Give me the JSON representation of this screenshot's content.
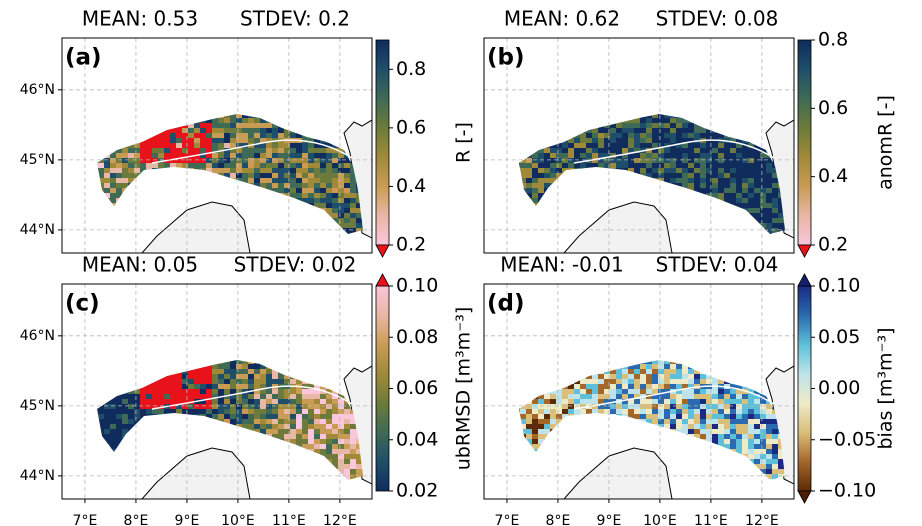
{
  "map": {
    "xlim": [
      6.55,
      12.63
    ],
    "ylim": [
      43.67,
      46.74
    ],
    "xticks": [
      {
        "value": 7,
        "label": "7°E"
      },
      {
        "value": 8,
        "label": "8°E"
      },
      {
        "value": 9,
        "label": "9°E"
      },
      {
        "value": 10,
        "label": "10°E"
      },
      {
        "value": 11,
        "label": "11°E"
      },
      {
        "value": 12,
        "label": "12°E"
      }
    ],
    "yticks": [
      {
        "value": 44,
        "label": "44°N"
      },
      {
        "value": 45,
        "label": "45°N"
      },
      {
        "value": 46,
        "label": "46°N"
      }
    ],
    "grid": true
  },
  "panels": [
    {
      "label": "(a)",
      "mean": "MEAN: 0.53",
      "stdev": "STDEV: 0.2",
      "colorbar_label": "R [-]",
      "clim": [
        0.2,
        0.9
      ],
      "extend": "min",
      "ticks": [
        0.2,
        0.4,
        0.6,
        0.8
      ],
      "colormap": [
        "#f9c6db",
        "#e8b7a5",
        "#c89c55",
        "#a08a3a",
        "#6c7b3b",
        "#3f6a55",
        "#1f4e6a",
        "#0f2c5c"
      ],
      "under_color": "#e8121a"
    },
    {
      "label": "(b)",
      "mean": "MEAN: 0.62",
      "stdev": "STDEV: 0.08",
      "colorbar_label": "anomR [-]",
      "clim": [
        0.2,
        0.8
      ],
      "extend": "min",
      "ticks": [
        0.2,
        0.4,
        0.6,
        0.8
      ],
      "colormap": [
        "#f9c6db",
        "#e8b7a5",
        "#c89c55",
        "#a08a3a",
        "#6c7b3b",
        "#3f6a55",
        "#1f4e6a",
        "#0f2c5c"
      ],
      "under_color": "#e8121a"
    },
    {
      "label": "(c)",
      "mean": "MEAN: 0.05",
      "stdev": "STDEV: 0.02",
      "colorbar_label": "ubRMSD [m³m⁻³]",
      "clim": [
        0.02,
        0.1
      ],
      "extend": "max",
      "ticks": [
        0.02,
        0.04,
        0.06,
        0.08,
        {
          "value": 0.1,
          "label": "0.10"
        }
      ],
      "colormap": [
        "#0f2c5c",
        "#1f4e6a",
        "#3f6a55",
        "#6c7b3b",
        "#a08a3a",
        "#c89c55",
        "#e8b7a5",
        "#f9c6db"
      ],
      "over_color": "#e8121a"
    },
    {
      "label": "(d)",
      "mean": "MEAN: -0.01",
      "stdev": "STDEV: 0.04",
      "colorbar_label": "bias [m³m⁻³]",
      "clim": [
        -0.1,
        0.1
      ],
      "extend": "both",
      "ticks": [
        {
          "value": -0.1,
          "label": "−0.10"
        },
        {
          "value": -0.05,
          "label": "−0.05"
        },
        {
          "value": 0,
          "label": "0.00"
        },
        {
          "value": 0.05,
          "label": "0.05"
        },
        {
          "value": 0.1,
          "label": "0.10"
        }
      ],
      "colormap": [
        "#5c2a07",
        "#a3672a",
        "#d9bf7a",
        "#eeeac8",
        "#bfe3ea",
        "#5ec0d8",
        "#2a6bb0",
        "#1a2a80"
      ],
      "under_color": "#4a1f04",
      "over_color": "#141f6e"
    }
  ]
}
